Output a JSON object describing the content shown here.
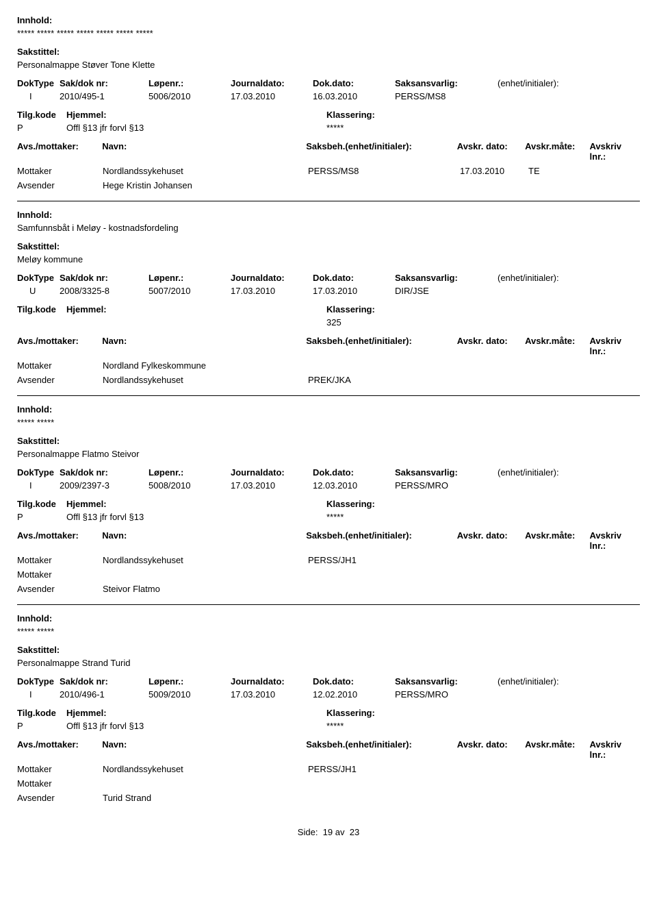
{
  "labels": {
    "innhold": "Innhold:",
    "sakstittel": "Sakstittel:",
    "doktype": "DokType",
    "sakdok": "Sak/dok nr:",
    "lopenr": "Løpenr.:",
    "journaldato": "Journaldato:",
    "dokdato": "Dok.dato:",
    "saksansvarlig": "Saksansvarlig:",
    "enhet": "(enhet/initialer):",
    "tilgkode": "Tilg.kode",
    "hjemmel": "Hjemmel:",
    "klassering": "Klassering:",
    "avsmottaker": "Avs./mottaker:",
    "navn": "Navn:",
    "saksbeh": "Saksbeh.(enhet/initialer):",
    "avskrdato": "Avskr. dato:",
    "avskrmate": "Avskr.måte:",
    "avskrivlnr": "Avskriv lnr.:",
    "mottaker": "Mottaker",
    "avsender": "Avsender",
    "side": "Side:",
    "av": "av"
  },
  "page": {
    "current": "19",
    "total": "23"
  },
  "records": [
    {
      "innhold": "***** ***** ***** ***** ***** ***** *****",
      "sakstittel": "Personalmappe Støver Tone Klette",
      "doktype": "I",
      "sakdok": "2010/495-1",
      "lopenr": "5006/2010",
      "journaldato": "17.03.2010",
      "dokdato": "16.03.2010",
      "saksansvarlig": "PERSS/MS8",
      "tilgkode": "P",
      "hjemmel": "Offl §13 jfr forvl §13",
      "klassering": "*****",
      "parties": [
        {
          "role": "Mottaker",
          "navn": "Nordlandssykehuset",
          "saksbeh": "PERSS/MS8",
          "avskrdato": "17.03.2010",
          "avskrmate": "TE"
        },
        {
          "role": "Avsender",
          "navn": "Hege Kristin Johansen",
          "saksbeh": "",
          "avskrdato": "",
          "avskrmate": ""
        }
      ]
    },
    {
      "innhold": "Samfunnsbåt i Meløy - kostnadsfordeling",
      "sakstittel": "Meløy kommune",
      "doktype": "U",
      "sakdok": "2008/3325-8",
      "lopenr": "5007/2010",
      "journaldato": "17.03.2010",
      "dokdato": "17.03.2010",
      "saksansvarlig": "DIR/JSE",
      "tilgkode": "",
      "hjemmel": "",
      "klassering": "325",
      "parties": [
        {
          "role": "Mottaker",
          "navn": "Nordland Fylkeskommune",
          "saksbeh": "",
          "avskrdato": "",
          "avskrmate": ""
        },
        {
          "role": "Avsender",
          "navn": "Nordlandssykehuset",
          "saksbeh": "PREK/JKA",
          "avskrdato": "",
          "avskrmate": ""
        }
      ]
    },
    {
      "innhold": "***** *****",
      "sakstittel": "Personalmappe Flatmo Steivor",
      "doktype": "I",
      "sakdok": "2009/2397-3",
      "lopenr": "5008/2010",
      "journaldato": "17.03.2010",
      "dokdato": "12.03.2010",
      "saksansvarlig": "PERSS/MRO",
      "tilgkode": "P",
      "hjemmel": "Offl §13 jfr forvl §13",
      "klassering": "*****",
      "parties": [
        {
          "role": "Mottaker",
          "navn": "Nordlandssykehuset",
          "saksbeh": "PERSS/JH1",
          "avskrdato": "",
          "avskrmate": ""
        },
        {
          "role": "Mottaker",
          "navn": "",
          "saksbeh": "",
          "avskrdato": "",
          "avskrmate": ""
        },
        {
          "role": "Avsender",
          "navn": "Steivor Flatmo",
          "saksbeh": "",
          "avskrdato": "",
          "avskrmate": ""
        }
      ]
    },
    {
      "innhold": "***** *****",
      "sakstittel": "Personalmappe Strand Turid",
      "doktype": "I",
      "sakdok": "2010/496-1",
      "lopenr": "5009/2010",
      "journaldato": "17.03.2010",
      "dokdato": "12.02.2010",
      "saksansvarlig": "PERSS/MRO",
      "tilgkode": "P",
      "hjemmel": "Offl §13 jfr forvl §13",
      "klassering": "*****",
      "parties": [
        {
          "role": "Mottaker",
          "navn": "Nordlandssykehuset",
          "saksbeh": "PERSS/JH1",
          "avskrdato": "",
          "avskrmate": ""
        },
        {
          "role": "Mottaker",
          "navn": "",
          "saksbeh": "",
          "avskrdato": "",
          "avskrmate": ""
        },
        {
          "role": "Avsender",
          "navn": "Turid Strand",
          "saksbeh": "",
          "avskrdato": "",
          "avskrmate": ""
        }
      ]
    }
  ]
}
